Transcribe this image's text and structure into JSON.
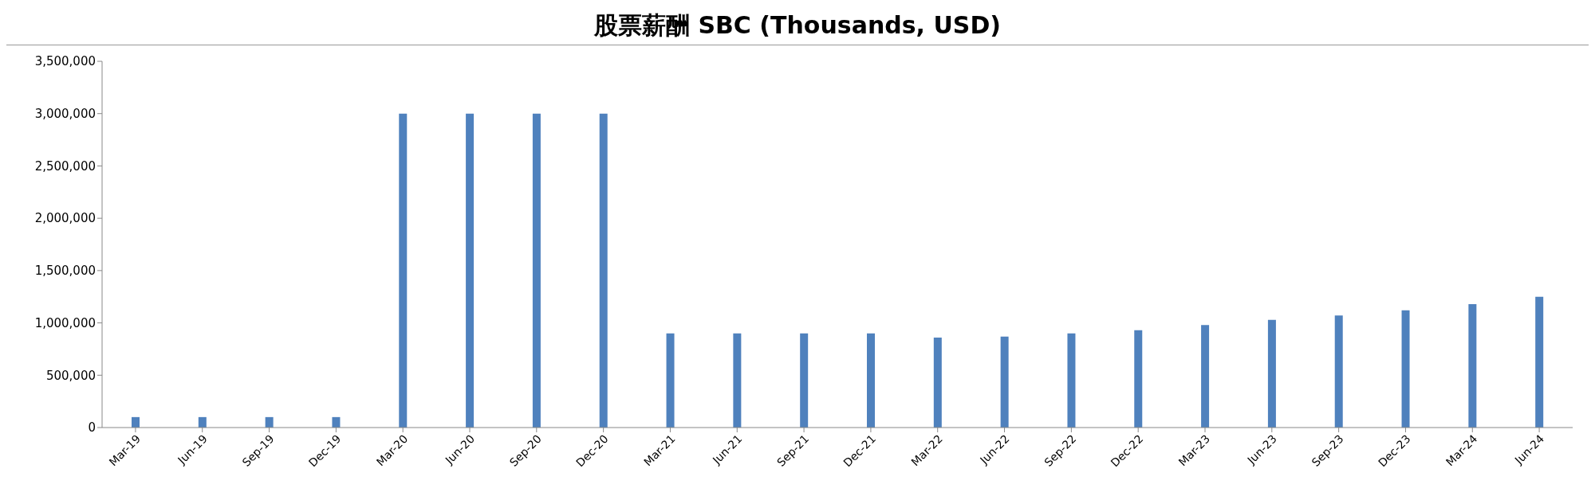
{
  "chart_data": {
    "type": "bar",
    "title": "股票薪酬 SBC (Thousands, USD)",
    "categories": [
      "Mar-19",
      "Jun-19",
      "Sep-19",
      "Dec-19",
      "Mar-20",
      "Jun-20",
      "Sep-20",
      "Dec-20",
      "Mar-21",
      "Jun-21",
      "Sep-21",
      "Dec-21",
      "Mar-22",
      "Jun-22",
      "Sep-22",
      "Dec-22",
      "Mar-23",
      "Jun-23",
      "Sep-23",
      "Dec-23",
      "Mar-24",
      "Jun-24"
    ],
    "values": [
      100000,
      100000,
      100000,
      100000,
      3000000,
      3000000,
      3000000,
      3000000,
      900000,
      900000,
      900000,
      900000,
      860000,
      870000,
      900000,
      930000,
      980000,
      1030000,
      1070000,
      1120000,
      1180000,
      1250000
    ],
    "color": "#4f81bd",
    "ylim": [
      0,
      3500000
    ],
    "yticks": [
      0,
      {
        "value": 500000,
        "label": "500,000"
      },
      {
        "value": 1000000,
        "label": "1,000,000"
      },
      {
        "value": 1500000,
        "label": "1,500,000"
      },
      {
        "value": 2000000,
        "label": "2,000,000"
      },
      {
        "value": 2500000,
        "label": "2,500,000"
      },
      {
        "value": 3000000,
        "label": "3,000,000"
      },
      {
        "value": 3500000,
        "label": "3,500,000"
      }
    ],
    "grid": false,
    "legend": false
  }
}
